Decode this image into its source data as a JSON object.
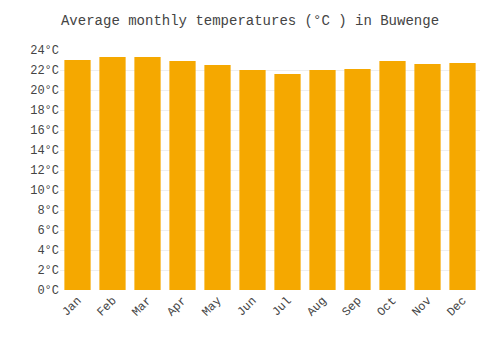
{
  "chart_data": {
    "type": "bar",
    "title": "Average monthly temperatures (°C ) in Buwenge",
    "categories": [
      "Jan",
      "Feb",
      "Mar",
      "Apr",
      "May",
      "Jun",
      "Jul",
      "Aug",
      "Sep",
      "Oct",
      "Nov",
      "Dec"
    ],
    "values": [
      23.0,
      23.3,
      23.3,
      22.9,
      22.5,
      22.0,
      21.6,
      22.0,
      22.1,
      22.9,
      22.6,
      22.7
    ],
    "color": "#F5A800",
    "ylim": [
      0,
      24
    ],
    "yticks": [
      {
        "value": 0,
        "label": "0°C"
      },
      {
        "value": 2,
        "label": "2°C"
      },
      {
        "value": 4,
        "label": "4°C"
      },
      {
        "value": 6,
        "label": "6°C"
      },
      {
        "value": 8,
        "label": "8°C"
      },
      {
        "value": 10,
        "label": "10°C"
      },
      {
        "value": 12,
        "label": "12°C"
      },
      {
        "value": 14,
        "label": "14°C"
      },
      {
        "value": 16,
        "label": "16°C"
      },
      {
        "value": 18,
        "label": "18°C"
      },
      {
        "value": 20,
        "label": "20°C"
      },
      {
        "value": 22,
        "label": "22°C"
      },
      {
        "value": 24,
        "label": "24°C"
      }
    ],
    "grid": true
  }
}
